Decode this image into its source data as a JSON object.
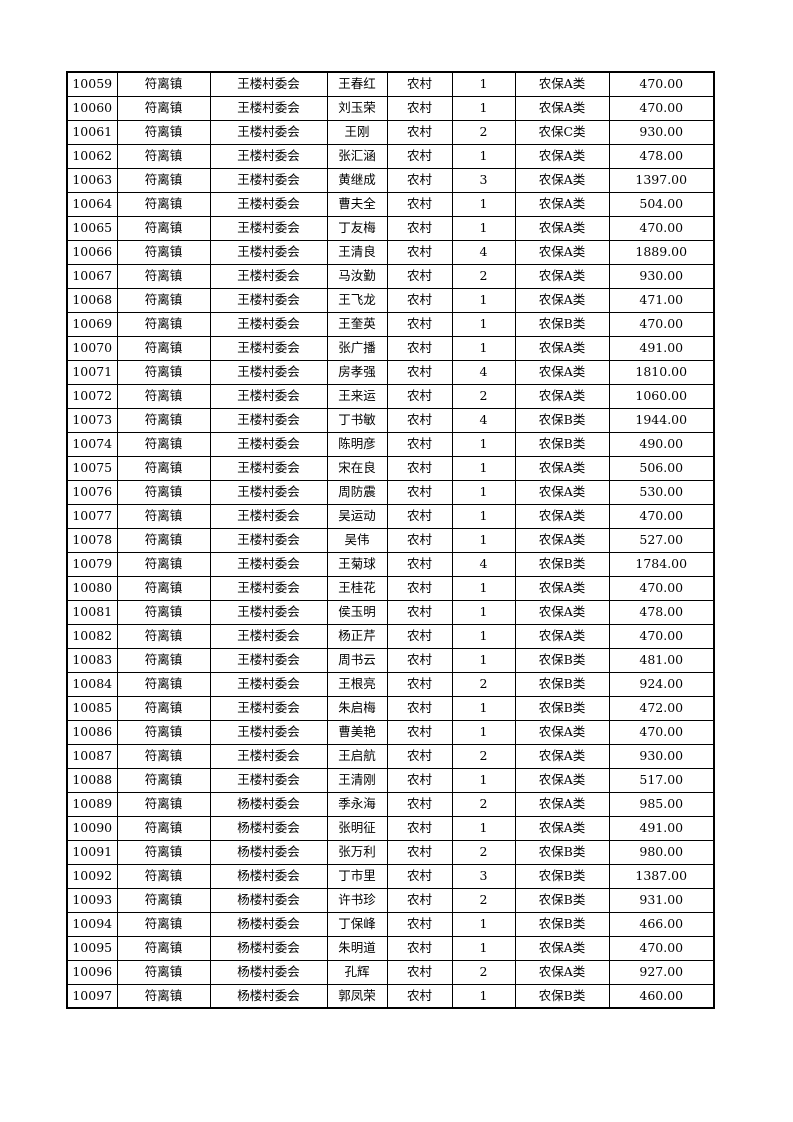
{
  "table": {
    "rows": [
      [
        "10059",
        "符离镇",
        "王楼村委会",
        "王春红",
        "农村",
        "1",
        "农保A类",
        "470.00"
      ],
      [
        "10060",
        "符离镇",
        "王楼村委会",
        "刘玉荣",
        "农村",
        "1",
        "农保A类",
        "470.00"
      ],
      [
        "10061",
        "符离镇",
        "王楼村委会",
        "王刚",
        "农村",
        "2",
        "农保C类",
        "930.00"
      ],
      [
        "10062",
        "符离镇",
        "王楼村委会",
        "张汇涵",
        "农村",
        "1",
        "农保A类",
        "478.00"
      ],
      [
        "10063",
        "符离镇",
        "王楼村委会",
        "黄继成",
        "农村",
        "3",
        "农保A类",
        "1397.00"
      ],
      [
        "10064",
        "符离镇",
        "王楼村委会",
        "曹夫全",
        "农村",
        "1",
        "农保A类",
        "504.00"
      ],
      [
        "10065",
        "符离镇",
        "王楼村委会",
        "丁友梅",
        "农村",
        "1",
        "农保A类",
        "470.00"
      ],
      [
        "10066",
        "符离镇",
        "王楼村委会",
        "王清良",
        "农村",
        "4",
        "农保A类",
        "1889.00"
      ],
      [
        "10067",
        "符离镇",
        "王楼村委会",
        "马汝勤",
        "农村",
        "2",
        "农保A类",
        "930.00"
      ],
      [
        "10068",
        "符离镇",
        "王楼村委会",
        "王飞龙",
        "农村",
        "1",
        "农保A类",
        "471.00"
      ],
      [
        "10069",
        "符离镇",
        "王楼村委会",
        "王奎英",
        "农村",
        "1",
        "农保B类",
        "470.00"
      ],
      [
        "10070",
        "符离镇",
        "王楼村委会",
        "张广播",
        "农村",
        "1",
        "农保A类",
        "491.00"
      ],
      [
        "10071",
        "符离镇",
        "王楼村委会",
        "房孝强",
        "农村",
        "4",
        "农保A类",
        "1810.00"
      ],
      [
        "10072",
        "符离镇",
        "王楼村委会",
        "王来运",
        "农村",
        "2",
        "农保A类",
        "1060.00"
      ],
      [
        "10073",
        "符离镇",
        "王楼村委会",
        "丁书敏",
        "农村",
        "4",
        "农保B类",
        "1944.00"
      ],
      [
        "10074",
        "符离镇",
        "王楼村委会",
        "陈明彦",
        "农村",
        "1",
        "农保B类",
        "490.00"
      ],
      [
        "10075",
        "符离镇",
        "王楼村委会",
        "宋在良",
        "农村",
        "1",
        "农保A类",
        "506.00"
      ],
      [
        "10076",
        "符离镇",
        "王楼村委会",
        "周防震",
        "农村",
        "1",
        "农保A类",
        "530.00"
      ],
      [
        "10077",
        "符离镇",
        "王楼村委会",
        "吴运动",
        "农村",
        "1",
        "农保A类",
        "470.00"
      ],
      [
        "10078",
        "符离镇",
        "王楼村委会",
        "吴伟",
        "农村",
        "1",
        "农保A类",
        "527.00"
      ],
      [
        "10079",
        "符离镇",
        "王楼村委会",
        "王菊球",
        "农村",
        "4",
        "农保B类",
        "1784.00"
      ],
      [
        "10080",
        "符离镇",
        "王楼村委会",
        "王桂花",
        "农村",
        "1",
        "农保A类",
        "470.00"
      ],
      [
        "10081",
        "符离镇",
        "王楼村委会",
        "侯玉明",
        "农村",
        "1",
        "农保A类",
        "478.00"
      ],
      [
        "10082",
        "符离镇",
        "王楼村委会",
        "杨正芹",
        "农村",
        "1",
        "农保A类",
        "470.00"
      ],
      [
        "10083",
        "符离镇",
        "王楼村委会",
        "周书云",
        "农村",
        "1",
        "农保B类",
        "481.00"
      ],
      [
        "10084",
        "符离镇",
        "王楼村委会",
        "王根亮",
        "农村",
        "2",
        "农保B类",
        "924.00"
      ],
      [
        "10085",
        "符离镇",
        "王楼村委会",
        "朱启梅",
        "农村",
        "1",
        "农保B类",
        "472.00"
      ],
      [
        "10086",
        "符离镇",
        "王楼村委会",
        "曹美艳",
        "农村",
        "1",
        "农保A类",
        "470.00"
      ],
      [
        "10087",
        "符离镇",
        "王楼村委会",
        "王启航",
        "农村",
        "2",
        "农保A类",
        "930.00"
      ],
      [
        "10088",
        "符离镇",
        "王楼村委会",
        "王清刚",
        "农村",
        "1",
        "农保A类",
        "517.00"
      ],
      [
        "10089",
        "符离镇",
        "杨楼村委会",
        "季永海",
        "农村",
        "2",
        "农保A类",
        "985.00"
      ],
      [
        "10090",
        "符离镇",
        "杨楼村委会",
        "张明征",
        "农村",
        "1",
        "农保A类",
        "491.00"
      ],
      [
        "10091",
        "符离镇",
        "杨楼村委会",
        "张万利",
        "农村",
        "2",
        "农保B类",
        "980.00"
      ],
      [
        "10092",
        "符离镇",
        "杨楼村委会",
        "丁市里",
        "农村",
        "3",
        "农保B类",
        "1387.00"
      ],
      [
        "10093",
        "符离镇",
        "杨楼村委会",
        "许书珍",
        "农村",
        "2",
        "农保B类",
        "931.00"
      ],
      [
        "10094",
        "符离镇",
        "杨楼村委会",
        "丁保峰",
        "农村",
        "1",
        "农保B类",
        "466.00"
      ],
      [
        "10095",
        "符离镇",
        "杨楼村委会",
        "朱明道",
        "农村",
        "1",
        "农保A类",
        "470.00"
      ],
      [
        "10096",
        "符离镇",
        "杨楼村委会",
        "孔辉",
        "农村",
        "2",
        "农保A类",
        "927.00"
      ],
      [
        "10097",
        "符离镇",
        "杨楼村委会",
        "郭凤荣",
        "农村",
        "1",
        "农保B类",
        "460.00"
      ]
    ],
    "colors": {
      "border": "#000000",
      "text": "#000000",
      "page_background": "#ffffff"
    }
  }
}
